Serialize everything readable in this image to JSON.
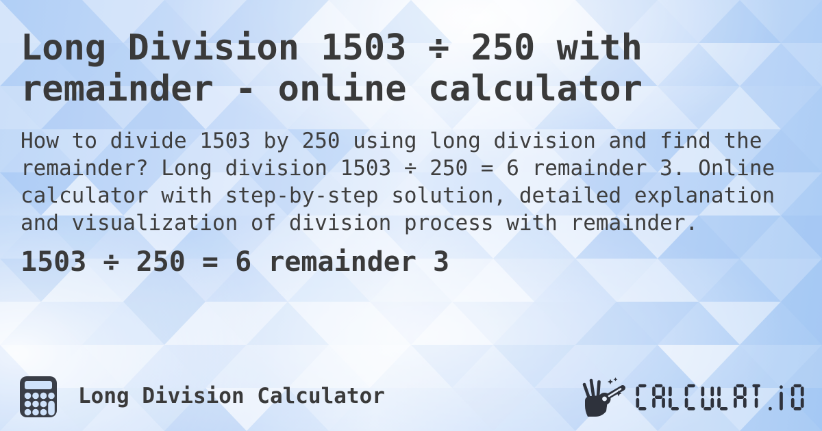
{
  "page": {
    "title": "Long Division 1503 ÷ 250 with remainder - online calculator",
    "description": "How to divide 1503 by 250 using long division and find the remainder? Long division 1503 ÷ 250 = 6 remainder 3. Online calculator with step-by-step solution, detailed explanation and visualization of division process with remainder.",
    "result": "1503 ÷ 250 = 6 remainder 3"
  },
  "calculation": {
    "dividend": "1503",
    "operator": "÷",
    "divisor": "250",
    "quotient": "6",
    "remainder": "3"
  },
  "footer": {
    "calculator_name": "Long Division Calculator",
    "logo_text": "CALCULAT.IO"
  },
  "icons": {
    "left": "calculator-icon",
    "right": "hand-with-magic-wand-icon"
  },
  "colors": {
    "text": "#3a3a3a",
    "icon_dark": "#3a3e47",
    "logo_dark": "#2e323c",
    "background_blues": [
      "#a7caf4",
      "#c8dcf9",
      "#e2edfc",
      "#ffffff"
    ]
  }
}
